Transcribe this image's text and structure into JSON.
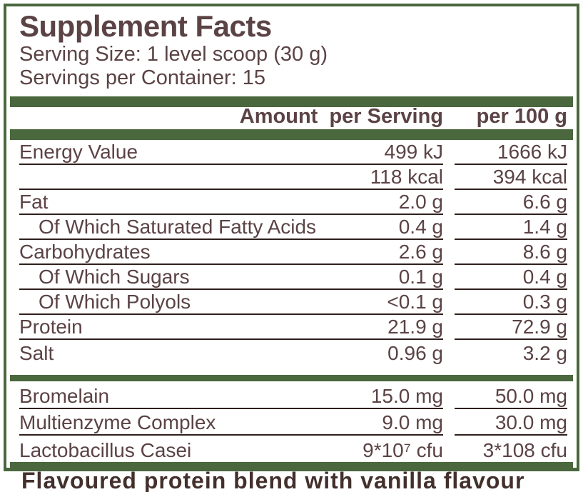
{
  "panel": {
    "title": "Supplement Facts",
    "serving_size": "Serving Size: 1 level scoop (30 g)",
    "servings_per_container": "Servings per Container: 15",
    "col_headers": {
      "amount_per_serving": "Amount  per Serving",
      "per_100g": "per 100 g"
    }
  },
  "nutrients": [
    {
      "label": "Energy Value",
      "indent": false,
      "per_serving": "499 kJ",
      "per_100g": "1666 kJ",
      "underline": true
    },
    {
      "label": "",
      "indent": false,
      "per_serving": "118 kcal",
      "per_100g": "394 kcal",
      "underline": true
    },
    {
      "label": "Fat",
      "indent": false,
      "per_serving": "2.0 g",
      "per_100g": "6.6 g",
      "underline": true
    },
    {
      "label": "Of Which Saturated Fatty Acids",
      "indent": true,
      "per_serving": "0.4 g",
      "per_100g": "1.4 g",
      "underline": true
    },
    {
      "label": "Carbohydrates",
      "indent": false,
      "per_serving": "2.6 g",
      "per_100g": "8.6 g",
      "underline": true
    },
    {
      "label": "Of Which Sugars",
      "indent": true,
      "per_serving": "0.1 g",
      "per_100g": "0.4 g",
      "underline": true
    },
    {
      "label": "Of Which Polyols",
      "indent": true,
      "per_serving": "<0.1 g",
      "per_100g": "0.3 g",
      "underline": true
    },
    {
      "label": "Protein",
      "indent": false,
      "per_serving": "21.9 g",
      "per_100g": "72.9 g",
      "underline": true
    },
    {
      "label": "Salt",
      "indent": false,
      "per_serving": "0.96 g",
      "per_100g": "3.2 g",
      "underline": false
    }
  ],
  "actives": [
    {
      "label": "Bromelain",
      "indent": false,
      "per_serving": "15.0 mg",
      "per_100g": "50.0 mg",
      "underline": true
    },
    {
      "label": "Multienzyme Complex",
      "indent": false,
      "per_serving": "9.0 mg",
      "per_100g": "30.0 mg",
      "underline": true
    },
    {
      "label": "Lactobacillus Casei",
      "indent": false,
      "per_serving": "9*10⁷ cfu",
      "per_100g": "3*108 cfu",
      "underline": false
    }
  ],
  "footer": {
    "clipped_text": "Flavoured protein blend with vanilla flavour"
  },
  "colors": {
    "green": "#4a673d",
    "brown": "#5b4345",
    "rule": "#2f1f1c"
  }
}
